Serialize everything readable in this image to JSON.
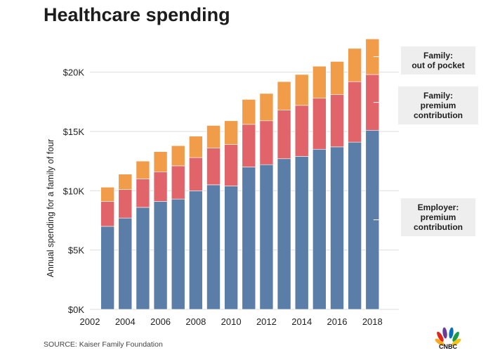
{
  "title": "Healthcare spending",
  "source": "SOURCE: Kaiser Family Foundation",
  "logo_text": "CNBC",
  "colors": {
    "employer": "#5b7ea8",
    "family_premium": "#e0646a",
    "out_of_pocket": "#f19c48",
    "grid": "#dddddd",
    "axis_text": "#222222",
    "legend_bg": "#eeeeee"
  },
  "legend": {
    "out_of_pocket": [
      "Family:",
      "out of pocket"
    ],
    "family_premium": [
      "Family:",
      "premium",
      "contribution"
    ],
    "employer": [
      "Employer:",
      "premium",
      "contribution"
    ]
  },
  "chart_data": {
    "type": "bar",
    "stacked": true,
    "title": "Healthcare spending",
    "xlabel": "",
    "ylabel": "Annual spending for a family of four",
    "ylim": [
      0,
      23000
    ],
    "yticks": [
      0,
      5000,
      10000,
      15000,
      20000
    ],
    "ytick_labels": [
      "$0K",
      "$5K",
      "$10K",
      "$15K",
      "$20K"
    ],
    "xlim": [
      2002,
      2019.5
    ],
    "xticks": [
      2002,
      2004,
      2006,
      2008,
      2010,
      2012,
      2014,
      2016,
      2018
    ],
    "categories": [
      2003,
      2004,
      2005,
      2006,
      2007,
      2008,
      2009,
      2010,
      2011,
      2012,
      2013,
      2014,
      2015,
      2016,
      2017,
      2018
    ],
    "series": [
      {
        "name": "Employer: premium contribution",
        "color_key": "employer",
        "values": [
          7000,
          7700,
          8600,
          9100,
          9300,
          10000,
          10500,
          10400,
          12000,
          12200,
          12700,
          12900,
          13500,
          13700,
          14100,
          15100
        ]
      },
      {
        "name": "Family: premium contribution",
        "color_key": "family_premium",
        "values": [
          2100,
          2400,
          2400,
          2500,
          2800,
          2800,
          3100,
          3500,
          3600,
          3700,
          4100,
          4300,
          4300,
          4400,
          5100,
          4700
        ]
      },
      {
        "name": "Family: out of pocket",
        "color_key": "out_of_pocket",
        "values": [
          1200,
          1300,
          1500,
          1700,
          1700,
          1800,
          1900,
          2000,
          2100,
          2300,
          2400,
          2600,
          2700,
          2800,
          2800,
          3000
        ]
      }
    ]
  }
}
